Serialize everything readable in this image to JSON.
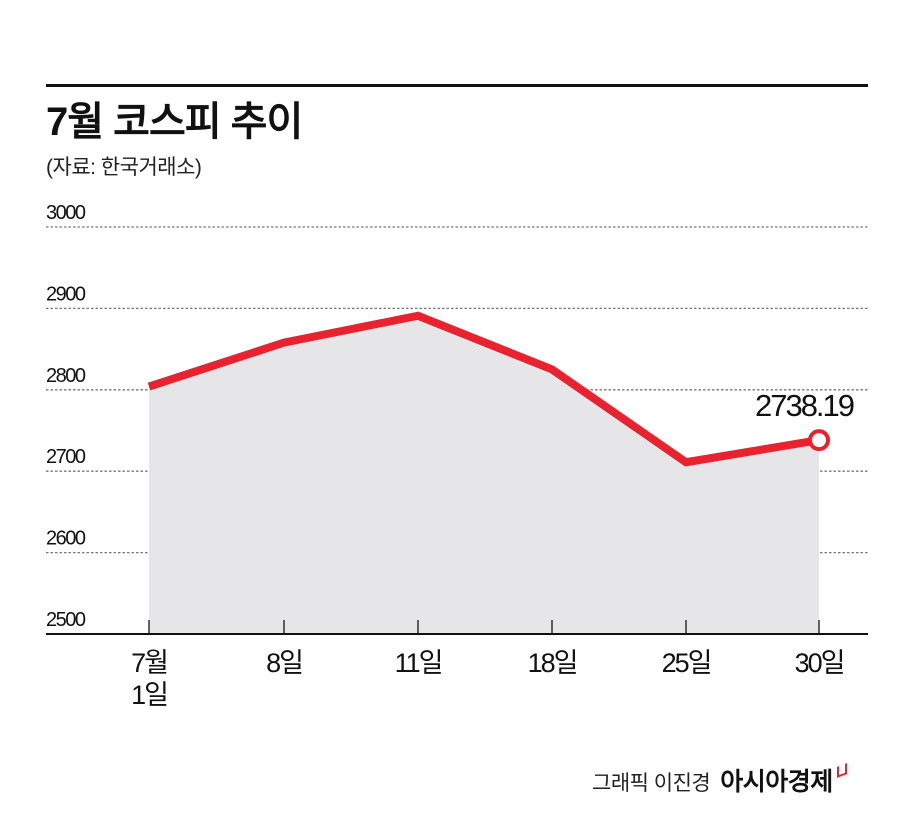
{
  "header": {
    "title": "7월 코스피 추이",
    "source": "(자료: 한국거래소)"
  },
  "chart_data": {
    "type": "area",
    "title": "7월 코스피 추이",
    "subtitle": "(자료: 한국거래소)",
    "xlabel": "",
    "ylabel": "",
    "categories": [
      "7월 1일",
      "8일",
      "11일",
      "18일",
      "25일",
      "30일"
    ],
    "category_labels": [
      [
        "7월",
        "1일"
      ],
      [
        "8일"
      ],
      [
        "11일"
      ],
      [
        "18일"
      ],
      [
        "25일"
      ],
      [
        "30일"
      ]
    ],
    "series": [
      {
        "name": "KOSPI",
        "values": [
          2804,
          2858,
          2891,
          2825,
          2711,
          2738.19
        ],
        "color": "#e8222e"
      }
    ],
    "ylim": [
      2500,
      3000
    ],
    "yticks": [
      "3000",
      "2900",
      "2800",
      "2700",
      "2600",
      "2500"
    ],
    "grid": true,
    "annotations": [
      {
        "category": "30일",
        "label": "2738.19"
      }
    ],
    "fill_color": "#e6e6e8"
  },
  "credit": {
    "author": "그래픽 이진경",
    "brand": "아시아경제"
  },
  "colors": {
    "line": "#e8222e",
    "area": "#e6e6e8",
    "grid": "#777777",
    "text": "#111111"
  }
}
